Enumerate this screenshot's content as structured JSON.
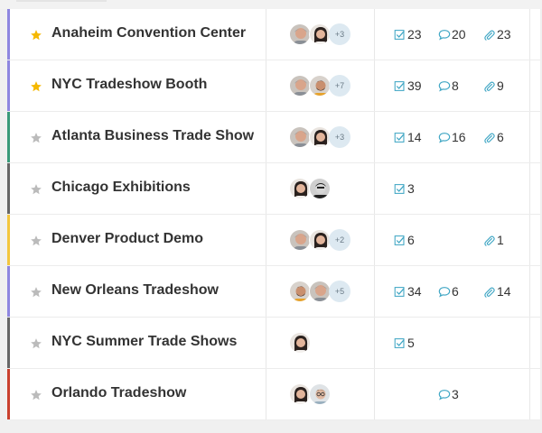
{
  "colors": {
    "star_active": "#f5b800",
    "star_inactive": "#bbbbbb",
    "icon_teal": "#3fa6c4"
  },
  "projects": [
    {
      "name": "Anaheim Convention Center",
      "starred": true,
      "color": "#8e86e0",
      "avatars": [
        "man-gray",
        "woman-dark"
      ],
      "more": "+3",
      "tasks": "23",
      "comments": "20",
      "files": "23"
    },
    {
      "name": "NYC Tradeshow Booth",
      "starred": true,
      "color": "#8e86e0",
      "avatars": [
        "man-gray",
        "man-beard"
      ],
      "more": "+7",
      "tasks": "39",
      "comments": "8",
      "files": "9"
    },
    {
      "name": "Atlanta Business Trade Show",
      "starred": false,
      "color": "#3a9a7a",
      "avatars": [
        "man-gray",
        "woman-dark"
      ],
      "more": "+3",
      "tasks": "14",
      "comments": "16",
      "files": "6"
    },
    {
      "name": "Chicago Exhibitions",
      "starred": false,
      "color": "#666666",
      "avatars": [
        "woman-dark",
        "man-bw"
      ],
      "more": "",
      "tasks": "3",
      "comments": "",
      "files": ""
    },
    {
      "name": "Denver Product Demo",
      "starred": false,
      "color": "#f3c63e",
      "avatars": [
        "man-gray",
        "woman-dark"
      ],
      "more": "+2",
      "tasks": "6",
      "comments": "",
      "files": "1"
    },
    {
      "name": "New Orleans Tradeshow",
      "starred": false,
      "color": "#8e86e0",
      "avatars": [
        "man-beard",
        "man-gray"
      ],
      "more": "+5",
      "tasks": "34",
      "comments": "6",
      "files": "14"
    },
    {
      "name": "NYC Summer Trade Shows",
      "starred": false,
      "color": "#666666",
      "avatars": [
        "woman-dark"
      ],
      "more": "",
      "tasks": "5",
      "comments": "",
      "files": ""
    },
    {
      "name": "Orlando Tradeshow",
      "starred": false,
      "color": "#c9402e",
      "avatars": [
        "woman-dark",
        "man-glasses"
      ],
      "more": "",
      "tasks": "",
      "comments": "3",
      "files": ""
    }
  ]
}
